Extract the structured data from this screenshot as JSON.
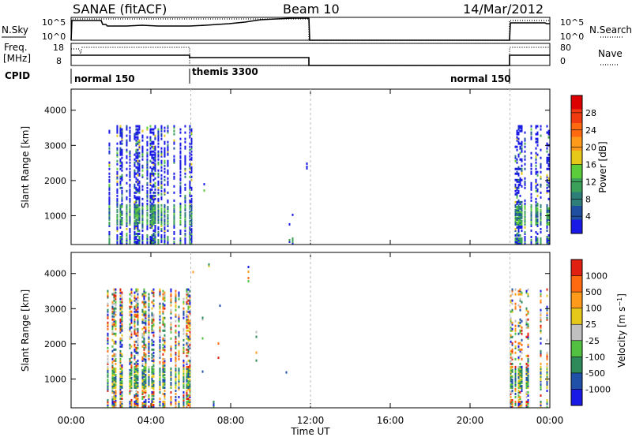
{
  "header": {
    "station": "SANAE (fitACF)",
    "beam": "Beam 10",
    "date": "14/Mar/2012"
  },
  "nsky_panel": {
    "left_label": "N.Sky",
    "right_label": "N.Search",
    "ticks_left": [
      "10^5",
      "10^0"
    ],
    "ticks_right": [
      "10^5",
      "10^0"
    ]
  },
  "freq_panel": {
    "left_label_1": "Freq.",
    "left_label_2": "[MHz]",
    "right_label": "Nave",
    "ticks_left": [
      "18",
      "8"
    ],
    "ticks_right": [
      "80",
      "0"
    ]
  },
  "cpid_panel": {
    "label": "CPID",
    "segments": [
      {
        "name": "normal 150",
        "start_hour": 0,
        "end_hour": 6
      },
      {
        "name": "themis 3300",
        "start_hour": 6,
        "end_hour": 22
      },
      {
        "name": "normal 150",
        "start_hour": 22,
        "end_hour": 24
      }
    ]
  },
  "x_axis": {
    "label": "Time UT",
    "ticks": [
      "00:00",
      "04:00",
      "08:00",
      "12:00",
      "16:00",
      "20:00",
      "00:00"
    ]
  },
  "y_axis": {
    "label": "Slant Range [km]",
    "ticks": [
      "4000",
      "3000",
      "2000",
      "1000"
    ]
  },
  "power_scale": {
    "label": "Power [dB]",
    "ticks": [
      "28",
      "24",
      "20",
      "16",
      "12",
      "8",
      "4"
    ],
    "colors": [
      "#1a1ae6",
      "#1f4fa0",
      "#2e7e7a",
      "#3aa05a",
      "#5ccd3a",
      "#e6c81a",
      "#ff9a1a",
      "#ff6a10",
      "#f03a10",
      "#dd0000"
    ]
  },
  "velocity_scale": {
    "label": "Velocity [m s^-1]",
    "ticks": [
      "1000",
      "500",
      "100",
      "25",
      "-25",
      "-100",
      "-500",
      "-1000"
    ],
    "colors": [
      "#1a1ae6",
      "#2050a8",
      "#2e8a5a",
      "#52c040",
      "#c0c0c0",
      "#e6c81a",
      "#ff9a1a",
      "#ff6a10",
      "#e02010"
    ]
  },
  "chart_data": [
    {
      "type": "heatmap",
      "title": "Power",
      "xlabel": "Time UT",
      "ylabel": "Slant Range [km]",
      "xlim": [
        0,
        24
      ],
      "ylim": [
        180,
        4600
      ],
      "colorbar": {
        "label": "Power [dB]",
        "range": [
          0,
          30
        ]
      },
      "activity_regions": [
        {
          "start_hour": 1.8,
          "end_hour": 6.0,
          "range_km": [
            180,
            3550
          ],
          "level": "dense"
        },
        {
          "start_hour": 6.0,
          "end_hour": 12.0,
          "range_km": [
            180,
            4600
          ],
          "level": "sparse"
        },
        {
          "start_hour": 22.0,
          "end_hour": 24.0,
          "range_km": [
            180,
            3550
          ],
          "level": "moderate"
        }
      ]
    },
    {
      "type": "heatmap",
      "title": "Velocity",
      "xlabel": "Time UT",
      "ylabel": "Slant Range [km]",
      "xlim": [
        0,
        24
      ],
      "ylim": [
        180,
        4600
      ],
      "colorbar": {
        "label": "Velocity [m s^-1]",
        "range": [
          -1000,
          1000
        ]
      },
      "activity_regions": [
        {
          "start_hour": 1.8,
          "end_hour": 6.0,
          "range_km": [
            180,
            3550
          ],
          "level": "dense"
        },
        {
          "start_hour": 6.0,
          "end_hour": 12.0,
          "range_km": [
            180,
            4600
          ],
          "level": "sparse"
        },
        {
          "start_hour": 22.0,
          "end_hour": 24.0,
          "range_km": [
            180,
            3550
          ],
          "level": "moderate"
        }
      ]
    }
  ]
}
